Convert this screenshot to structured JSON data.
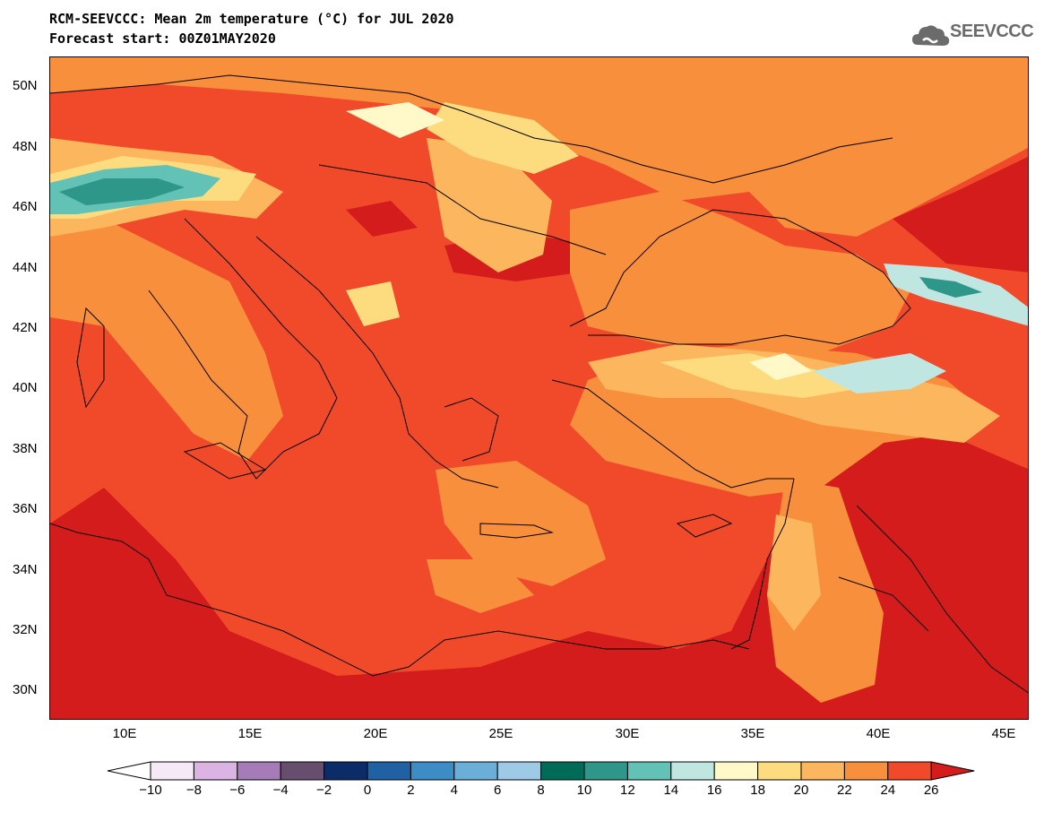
{
  "header": {
    "title": "RCM-SEEVCCC: Mean 2m temperature (°C) for JUL 2020",
    "subtitle": "Forecast start: 00Z01MAY2020",
    "logo_text": "SEEVCCC",
    "logo_icon": "cloud-logo-icon"
  },
  "map": {
    "lat_labels": [
      "50N",
      "48N",
      "46N",
      "44N",
      "42N",
      "40N",
      "38N",
      "36N",
      "34N",
      "32N",
      "30N"
    ],
    "lon_labels": [
      "10E",
      "15E",
      "20E",
      "25E",
      "30E",
      "35E",
      "40E",
      "45E"
    ],
    "lat_range": [
      29,
      51
    ],
    "lon_range": [
      6.5,
      45.5
    ]
  },
  "legend": {
    "levels": [
      "−10",
      "−8",
      "−6",
      "−4",
      "−2",
      "0",
      "2",
      "4",
      "6",
      "8",
      "10",
      "12",
      "14",
      "16",
      "18",
      "20",
      "22",
      "24",
      "26"
    ],
    "colors": [
      "#f5e9f7",
      "#dcb4e3",
      "#a57cb8",
      "#674e6e",
      "#0b2c66",
      "#1f61a3",
      "#3c8cc6",
      "#6baed8",
      "#9ecae6",
      "#006b57",
      "#2f968a",
      "#62c2b6",
      "#c0e6e2",
      "#fff9c9",
      "#fddc7f",
      "#fcb65e",
      "#f78f3c",
      "#f14a2a",
      "#d41c1c"
    ],
    "under_color": "#ffffff",
    "over_color": "#d41c1c"
  }
}
